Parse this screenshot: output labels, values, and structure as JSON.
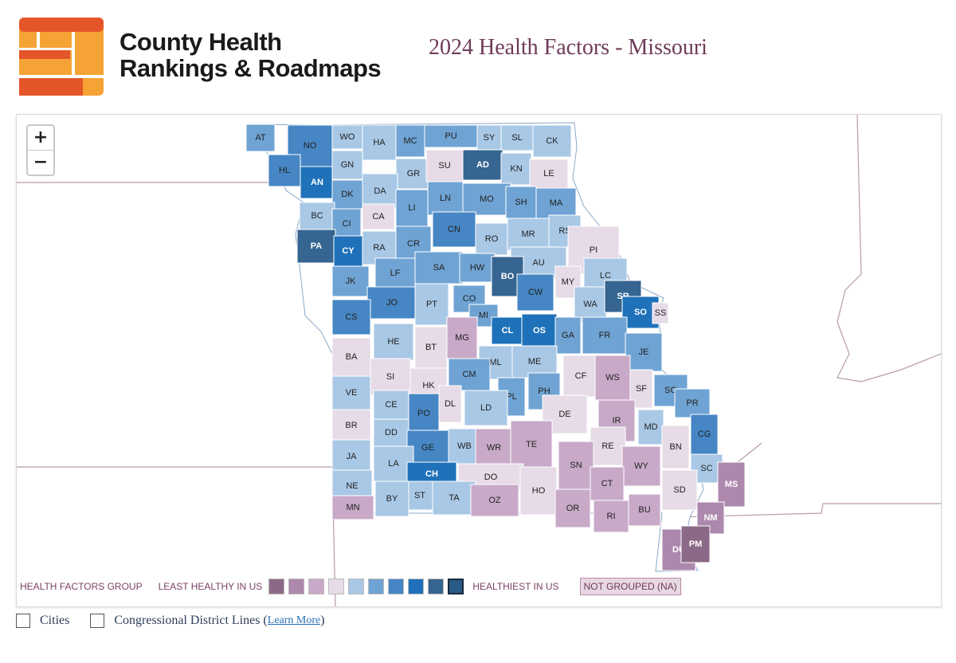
{
  "brand": {
    "line1": "County Health",
    "line2": "Rankings & Roadmaps"
  },
  "page_title": "2024 Health Factors - Missouri",
  "zoom": {
    "in": "+",
    "out": "−"
  },
  "colors": {
    "g1": "#8c6a87",
    "g2": "#ad88ad",
    "g3": "#c8aac8",
    "g4": "#e6dbe7",
    "g5": "#a9c8e6",
    "g6": "#6fa3d3",
    "g7": "#4686c4",
    "g8": "#1f72b9",
    "g9": "#356590",
    "g10": "#2a5a86",
    "border": "#ffffff",
    "na": "#e8d8e3"
  },
  "legend": {
    "title": "HEALTH FACTORS GROUP",
    "least": "LEAST HEALTHY IN US",
    "healthiest": "HEALTHIEST IN US",
    "not_grouped": "NOT GROUPED (NA)"
  },
  "counties": [
    {
      "code": "AT",
      "g": 6
    },
    {
      "code": "NO",
      "g": 7
    },
    {
      "code": "WO",
      "g": 5
    },
    {
      "code": "HA",
      "g": 5
    },
    {
      "code": "MC",
      "g": 6
    },
    {
      "code": "PU",
      "g": 6
    },
    {
      "code": "SY",
      "g": 5
    },
    {
      "code": "SL",
      "g": 5
    },
    {
      "code": "CK",
      "g": 5
    },
    {
      "code": "HL",
      "g": 7
    },
    {
      "code": "AN",
      "g": 8
    },
    {
      "code": "GN",
      "g": 5
    },
    {
      "code": "GR",
      "g": 5
    },
    {
      "code": "SU",
      "g": 4
    },
    {
      "code": "AD",
      "g": 9
    },
    {
      "code": "KN",
      "g": 5
    },
    {
      "code": "LE",
      "g": 4
    },
    {
      "code": "DK",
      "g": 6
    },
    {
      "code": "DA",
      "g": 5
    },
    {
      "code": "LI",
      "g": 6
    },
    {
      "code": "LN",
      "g": 6
    },
    {
      "code": "MO",
      "g": 6
    },
    {
      "code": "SH",
      "g": 6
    },
    {
      "code": "MA",
      "g": 6
    },
    {
      "code": "BC",
      "g": 5
    },
    {
      "code": "CA",
      "g": 4
    },
    {
      "code": "CI",
      "g": 6
    },
    {
      "code": "CN",
      "g": 7
    },
    {
      "code": "RO",
      "g": 5
    },
    {
      "code": "MR",
      "g": 5
    },
    {
      "code": "RS",
      "g": 5
    },
    {
      "code": "PA",
      "g": 9
    },
    {
      "code": "CY",
      "g": 8
    },
    {
      "code": "RA",
      "g": 5
    },
    {
      "code": "CR",
      "g": 6
    },
    {
      "code": "PI",
      "g": 4
    },
    {
      "code": "AU",
      "g": 5
    },
    {
      "code": "JK",
      "g": 6
    },
    {
      "code": "LF",
      "g": 6
    },
    {
      "code": "SA",
      "g": 6
    },
    {
      "code": "HW",
      "g": 6
    },
    {
      "code": "BO",
      "g": 9
    },
    {
      "code": "MY",
      "g": 4
    },
    {
      "code": "LC",
      "g": 5
    },
    {
      "code": "JO",
      "g": 7
    },
    {
      "code": "PT",
      "g": 5
    },
    {
      "code": "CO",
      "g": 6
    },
    {
      "code": "CW",
      "g": 7
    },
    {
      "code": "WA",
      "g": 5
    },
    {
      "code": "SR",
      "g": 9
    },
    {
      "code": "CS",
      "g": 7
    },
    {
      "code": "MI",
      "g": 6
    },
    {
      "code": "SO",
      "g": 8
    },
    {
      "code": "SS",
      "g": 4
    },
    {
      "code": "HE",
      "g": 5
    },
    {
      "code": "MG",
      "g": 3
    },
    {
      "code": "CL",
      "g": 8
    },
    {
      "code": "OS",
      "g": 8
    },
    {
      "code": "GA",
      "g": 6
    },
    {
      "code": "FR",
      "g": 6
    },
    {
      "code": "BA",
      "g": 4
    },
    {
      "code": "BT",
      "g": 4
    },
    {
      "code": "ML",
      "g": 5
    },
    {
      "code": "JE",
      "g": 6
    },
    {
      "code": "ME",
      "g": 5
    },
    {
      "code": "SI",
      "g": 4
    },
    {
      "code": "CM",
      "g": 6
    },
    {
      "code": "CF",
      "g": 4
    },
    {
      "code": "WS",
      "g": 3
    },
    {
      "code": "VE",
      "g": 5
    },
    {
      "code": "HK",
      "g": 4
    },
    {
      "code": "PL",
      "g": 6
    },
    {
      "code": "PH",
      "g": 6
    },
    {
      "code": "SF",
      "g": 4
    },
    {
      "code": "SG",
      "g": 6
    },
    {
      "code": "CE",
      "g": 5
    },
    {
      "code": "PR",
      "g": 6
    },
    {
      "code": "DL",
      "g": 4
    },
    {
      "code": "LD",
      "g": 5
    },
    {
      "code": "DE",
      "g": 4
    },
    {
      "code": "IR",
      "g": 3
    },
    {
      "code": "BR",
      "g": 4
    },
    {
      "code": "PO",
      "g": 7
    },
    {
      "code": "MD",
      "g": 5
    },
    {
      "code": "DD",
      "g": 5
    },
    {
      "code": "CG",
      "g": 7
    },
    {
      "code": "GE",
      "g": 7
    },
    {
      "code": "WB",
      "g": 5
    },
    {
      "code": "WR",
      "g": 3
    },
    {
      "code": "TE",
      "g": 3
    },
    {
      "code": "RE",
      "g": 4
    },
    {
      "code": "BN",
      "g": 4
    },
    {
      "code": "JA",
      "g": 5
    },
    {
      "code": "SN",
      "g": 3
    },
    {
      "code": "WY",
      "g": 3
    },
    {
      "code": "LA",
      "g": 5
    },
    {
      "code": "SC",
      "g": 5
    },
    {
      "code": "CH",
      "g": 8
    },
    {
      "code": "DO",
      "g": 4
    },
    {
      "code": "CT",
      "g": 3
    },
    {
      "code": "SD",
      "g": 4
    },
    {
      "code": "MS",
      "g": 2
    },
    {
      "code": "NE",
      "g": 5
    },
    {
      "code": "HO",
      "g": 4
    },
    {
      "code": "ST",
      "g": 5
    },
    {
      "code": "BY",
      "g": 5
    },
    {
      "code": "TA",
      "g": 5
    },
    {
      "code": "MN",
      "g": 3
    },
    {
      "code": "OZ",
      "g": 3
    },
    {
      "code": "OR",
      "g": 3
    },
    {
      "code": "RI",
      "g": 3
    },
    {
      "code": "BU",
      "g": 3
    },
    {
      "code": "NM",
      "g": 2
    },
    {
      "code": "DU",
      "g": 2
    },
    {
      "code": "PM",
      "g": 1
    }
  ],
  "toggles": {
    "cities": "Cities",
    "districts": "Congressional District Lines (",
    "learn_more": "Learn More",
    "close_paren": ")"
  }
}
